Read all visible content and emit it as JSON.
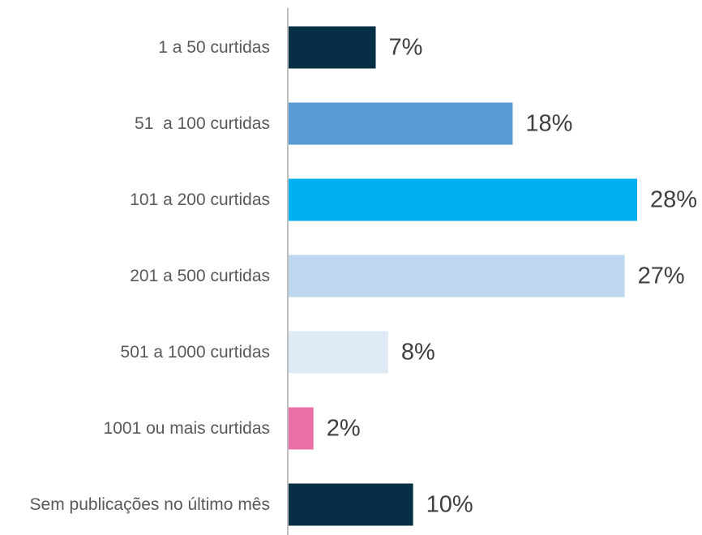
{
  "chart_data": {
    "type": "bar",
    "orientation": "horizontal",
    "categories": [
      "1 a 50 curtidas",
      "51  a 100 curtidas",
      "101 a 200 curtidas",
      "201 a 500 curtidas",
      "501 a 1000 curtidas",
      "1001 ou mais curtidas",
      "Sem publicações no último mês"
    ],
    "values": [
      7,
      18,
      28,
      27,
      8,
      2,
      10
    ],
    "value_labels": [
      "7%",
      "18%",
      "28%",
      "27%",
      "8%",
      "2%",
      "10%"
    ],
    "colors": [
      "#062e45",
      "#5b9bd5",
      "#00b0f0",
      "#bdd7ee",
      "#deeaf6",
      "#ea6fa8",
      "#062e45"
    ],
    "axis_color": "#bfbfbf",
    "xlim": [
      0,
      28
    ],
    "grid": false,
    "legend": false,
    "title": "",
    "xlabel": "",
    "ylabel": ""
  }
}
